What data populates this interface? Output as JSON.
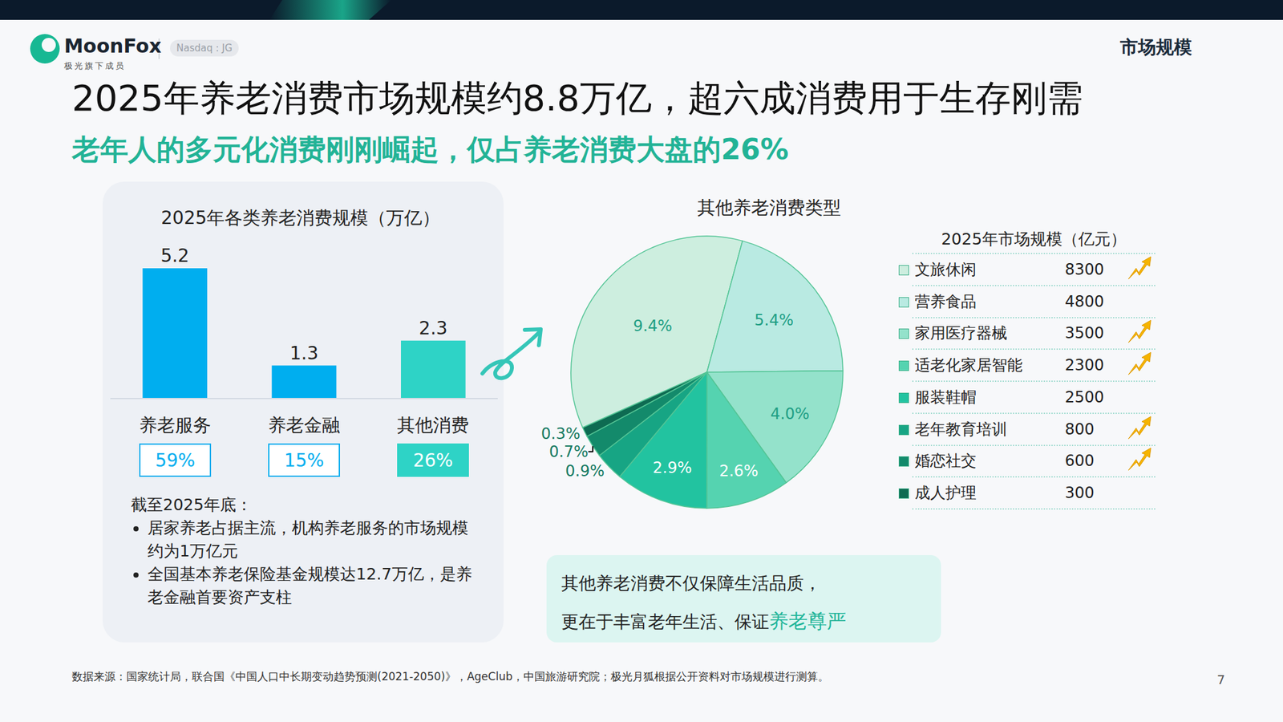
{
  "header": {
    "brand": "MoonFox",
    "ticker": "Nasdaq : JG",
    "brand_tagline": "极光旗下成员",
    "section": "市场规模"
  },
  "title": "2025年养老消费市场规模约8.8万亿，超六成消费用于生存刚需",
  "subtitle": "老年人的多元化消费刚刚崛起，仅占养老消费大盘的26%",
  "chart_data": [
    {
      "type": "bar",
      "title": "2025年各类养老消费规模（万亿）",
      "categories": [
        "养老服务",
        "养老金融",
        "其他消费"
      ],
      "values": [
        5.2,
        1.3,
        2.3
      ],
      "colors": [
        "#00aeef",
        "#00aeef",
        "#2ed3c6"
      ],
      "ylim": [
        0,
        5.2
      ],
      "yticks": [],
      "grid": false,
      "data_labels": true,
      "tick_labels": "x",
      "badges": [
        "59%",
        "15%",
        "26%"
      ]
    },
    {
      "type": "pie",
      "title": "其他养老消费类型",
      "categories": [
        "文旅休闲",
        "营养食品",
        "家用医疗器械",
        "适老化家居智能",
        "服装鞋帽",
        "老年教育培训",
        "婚恋社交",
        "成人护理"
      ],
      "values": [
        9.4,
        5.4,
        4.0,
        2.6,
        2.9,
        0.9,
        0.7,
        0.3
      ],
      "value_labels": [
        "9.4%",
        "5.4%",
        "4.0%",
        "2.6%",
        "2.9%",
        "0.9%",
        "0.7%",
        "0.3%"
      ],
      "colors": [
        "#cdeedf",
        "#b9eae2",
        "#94e2cb",
        "#55d3b0",
        "#22c3a0",
        "#17a584",
        "#138a6b",
        "#0e6b52"
      ],
      "data_labels": true
    }
  ],
  "legend_table": {
    "title": "2025年市场规模（亿元）",
    "values": [
      8300,
      4800,
      3500,
      2300,
      2500,
      800,
      600,
      300
    ],
    "rising": [
      true,
      false,
      true,
      true,
      false,
      true,
      true,
      false
    ]
  },
  "notes": {
    "heading": "截至2025年底：",
    "items": [
      "居家养老占据主流，机构养老服务的市场规模约为1万亿元",
      "全国基本养老保险基金规模达12.7万亿，是养老金融首要资产支柱"
    ]
  },
  "callout": {
    "lines": [
      [
        {
          "text": "其他养老消费不仅保障生活品质，"
        }
      ],
      [
        {
          "text": "更在于丰富老年生活、保证"
        },
        {
          "text": "养老尊严",
          "highlight": true
        }
      ]
    ]
  },
  "source": "数据来源：国家统计局，联合国《中国人口中长期变动趋势预测(2021-2050)》，AgeClub，中国旅游研究院；极光月狐根据公开资料对市场规模进行测算。",
  "page": 7
}
